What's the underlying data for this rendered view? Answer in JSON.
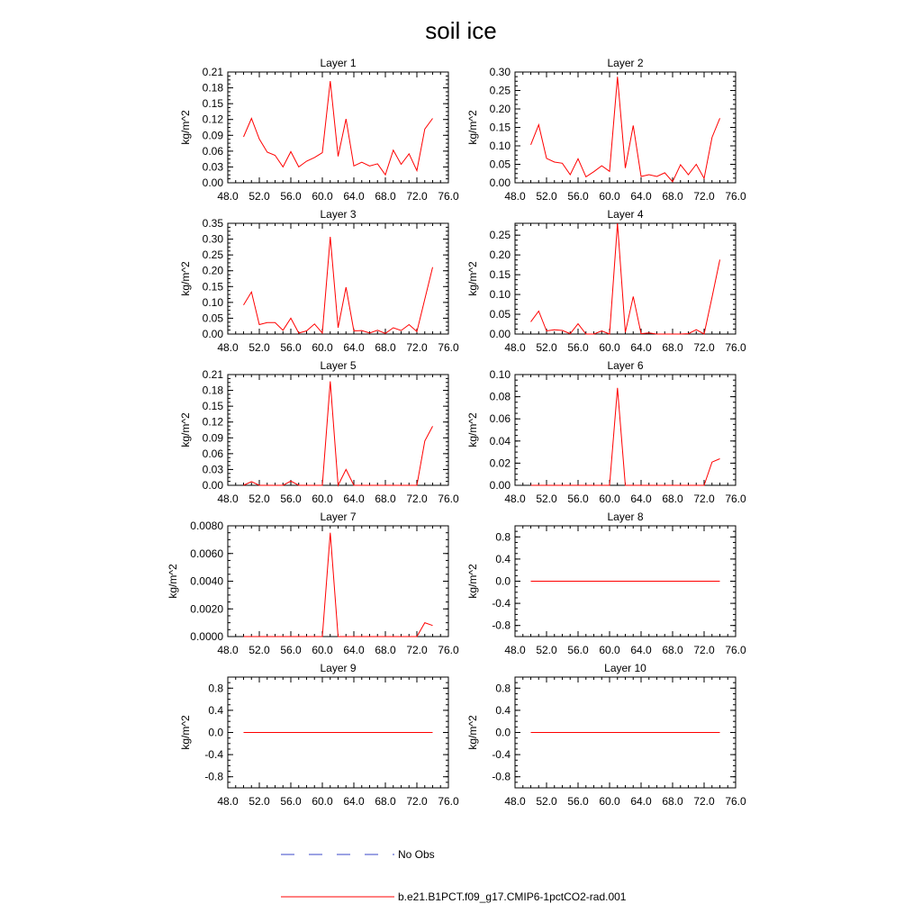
{
  "title": "soil ice",
  "colors": {
    "model_line": "#ff0000",
    "obs_line": "#3a46c8",
    "axis": "#000000",
    "background": "#ffffff"
  },
  "legend": {
    "position": "bottom-center",
    "items": [
      {
        "label": "No Obs",
        "style": "dashed",
        "color": "#3a46c8"
      },
      {
        "label": "b.e21.B1PCT.f09_g17.CMIP6-1pctCO2-rad.001",
        "style": "solid",
        "color": "#ff0000"
      }
    ]
  },
  "chart_data": [
    {
      "type": "line",
      "title": "Layer 1",
      "ylabel": "kg/m^2",
      "xlim": [
        48,
        76
      ],
      "xticks": [
        "48.0",
        "52.0",
        "56.0",
        "60.0",
        "64.0",
        "68.0",
        "72.0",
        "76.0"
      ],
      "ylim": [
        0,
        0.21
      ],
      "yticks": [
        "0.00",
        "0.03",
        "0.06",
        "0.09",
        "0.12",
        "0.15",
        "0.18",
        "0.21"
      ],
      "x": [
        50,
        51,
        52,
        53,
        54,
        55,
        56,
        57,
        58,
        59,
        60,
        61,
        62,
        63,
        64,
        65,
        66,
        67,
        68,
        69,
        70,
        71,
        72,
        73,
        74
      ],
      "series": [
        {
          "color": "#ff0000",
          "values": [
            0.087,
            0.122,
            0.083,
            0.058,
            0.052,
            0.03,
            0.059,
            0.03,
            0.041,
            0.048,
            0.057,
            0.193,
            0.05,
            0.121,
            0.032,
            0.039,
            0.032,
            0.036,
            0.015,
            0.062,
            0.035,
            0.055,
            0.023,
            0.102,
            0.122
          ]
        }
      ]
    },
    {
      "type": "line",
      "title": "Layer 2",
      "ylabel": "kg/m^2",
      "xlim": [
        48,
        76
      ],
      "xticks": [
        "48.0",
        "52.0",
        "56.0",
        "60.0",
        "64.0",
        "68.0",
        "72.0",
        "76.0"
      ],
      "ylim": [
        0,
        0.3
      ],
      "yticks": [
        "0.00",
        "0.05",
        "0.10",
        "0.15",
        "0.20",
        "0.25",
        "0.30"
      ],
      "x": [
        50,
        51,
        52,
        53,
        54,
        55,
        56,
        57,
        58,
        59,
        60,
        61,
        62,
        63,
        64,
        65,
        66,
        67,
        68,
        69,
        70,
        71,
        72,
        73,
        74
      ],
      "series": [
        {
          "color": "#ff0000",
          "values": [
            0.103,
            0.157,
            0.066,
            0.056,
            0.053,
            0.022,
            0.065,
            0.016,
            0.03,
            0.046,
            0.031,
            0.287,
            0.04,
            0.155,
            0.017,
            0.022,
            0.017,
            0.027,
            0.003,
            0.049,
            0.022,
            0.05,
            0.012,
            0.123,
            0.175
          ]
        }
      ]
    },
    {
      "type": "line",
      "title": "Layer 3",
      "ylabel": "kg/m^2",
      "xlim": [
        48,
        76
      ],
      "xticks": [
        "48.0",
        "52.0",
        "56.0",
        "60.0",
        "64.0",
        "68.0",
        "72.0",
        "76.0"
      ],
      "ylim": [
        0,
        0.35
      ],
      "yticks": [
        "0.00",
        "0.05",
        "0.10",
        "0.15",
        "0.20",
        "0.25",
        "0.30",
        "0.35"
      ],
      "x": [
        50,
        51,
        52,
        53,
        54,
        55,
        56,
        57,
        58,
        59,
        60,
        61,
        62,
        63,
        64,
        65,
        66,
        67,
        68,
        69,
        70,
        71,
        72,
        73,
        74
      ],
      "series": [
        {
          "color": "#ff0000",
          "values": [
            0.092,
            0.133,
            0.03,
            0.036,
            0.036,
            0.012,
            0.05,
            0.003,
            0.01,
            0.032,
            0.003,
            0.307,
            0.02,
            0.148,
            0.01,
            0.011,
            0.003,
            0.012,
            0.002,
            0.02,
            0.011,
            0.03,
            0.008,
            0.11,
            0.211
          ]
        }
      ]
    },
    {
      "type": "line",
      "title": "Layer 4",
      "ylabel": "kg/m^2",
      "xlim": [
        48,
        76
      ],
      "xticks": [
        "48.0",
        "52.0",
        "56.0",
        "60.0",
        "64.0",
        "68.0",
        "72.0",
        "76.0"
      ],
      "ylim": [
        0,
        0.28
      ],
      "yticks": [
        "0.00",
        "0.05",
        "0.10",
        "0.15",
        "0.20",
        "0.25"
      ],
      "x": [
        50,
        51,
        52,
        53,
        54,
        55,
        56,
        57,
        58,
        59,
        60,
        61,
        62,
        63,
        64,
        65,
        66,
        67,
        68,
        69,
        70,
        71,
        72,
        73,
        74
      ],
      "series": [
        {
          "color": "#ff0000",
          "values": [
            0.031,
            0.058,
            0.008,
            0.011,
            0.009,
            0.001,
            0.026,
            0.0,
            0.0,
            0.008,
            0.0,
            0.28,
            0.004,
            0.095,
            0.001,
            0.003,
            0.0,
            0.0,
            0.0,
            0.0,
            0.001,
            0.011,
            0.0,
            0.093,
            0.188
          ]
        }
      ]
    },
    {
      "type": "line",
      "title": "Layer 5",
      "ylabel": "kg/m^2",
      "xlim": [
        48,
        76
      ],
      "xticks": [
        "48.0",
        "52.0",
        "56.0",
        "60.0",
        "64.0",
        "68.0",
        "72.0",
        "76.0"
      ],
      "ylim": [
        0,
        0.21
      ],
      "yticks": [
        "0.00",
        "0.03",
        "0.06",
        "0.09",
        "0.12",
        "0.15",
        "0.18",
        "0.21"
      ],
      "x": [
        50,
        51,
        52,
        53,
        54,
        55,
        56,
        57,
        58,
        59,
        60,
        61,
        62,
        63,
        64,
        65,
        66,
        67,
        68,
        69,
        70,
        71,
        72,
        73,
        74
      ],
      "series": [
        {
          "color": "#ff0000",
          "values": [
            0.0,
            0.007,
            0.0,
            0.0,
            0.0,
            0.0,
            0.008,
            0.0,
            0.0,
            0.0,
            0.0,
            0.197,
            0.0,
            0.03,
            0.0,
            0.0,
            0.0,
            0.0,
            0.0,
            0.0,
            0.0,
            0.0,
            0.0,
            0.084,
            0.112
          ]
        }
      ]
    },
    {
      "type": "line",
      "title": "Layer 6",
      "ylabel": "kg/m^2",
      "xlim": [
        48,
        76
      ],
      "xticks": [
        "48.0",
        "52.0",
        "56.0",
        "60.0",
        "64.0",
        "68.0",
        "72.0",
        "76.0"
      ],
      "ylim": [
        0,
        0.1
      ],
      "yticks": [
        "0.00",
        "0.02",
        "0.04",
        "0.06",
        "0.08",
        "0.10"
      ],
      "x": [
        50,
        51,
        52,
        53,
        54,
        55,
        56,
        57,
        58,
        59,
        60,
        61,
        62,
        63,
        64,
        65,
        66,
        67,
        68,
        69,
        70,
        71,
        72,
        73,
        74
      ],
      "series": [
        {
          "color": "#ff0000",
          "values": [
            0.0,
            0.0,
            0.0,
            0.0,
            0.0,
            0.0,
            0.0,
            0.0,
            0.0,
            0.0,
            0.0,
            0.088,
            0.0,
            0.0,
            0.0,
            0.0,
            0.0,
            0.0,
            0.0,
            0.0,
            0.0,
            0.0,
            0.0,
            0.021,
            0.024
          ]
        }
      ]
    },
    {
      "type": "line",
      "title": "Layer 7",
      "ylabel": "kg/m^2",
      "xlim": [
        48,
        76
      ],
      "xticks": [
        "48.0",
        "52.0",
        "56.0",
        "60.0",
        "64.0",
        "68.0",
        "72.0",
        "76.0"
      ],
      "ylim": [
        0,
        0.008
      ],
      "yticks": [
        "0.0000",
        "0.0020",
        "0.0040",
        "0.0060",
        "0.0080"
      ],
      "x": [
        50,
        51,
        52,
        53,
        54,
        55,
        56,
        57,
        58,
        59,
        60,
        61,
        62,
        63,
        64,
        65,
        66,
        67,
        68,
        69,
        70,
        71,
        72,
        73,
        74
      ],
      "series": [
        {
          "color": "#ff0000",
          "values": [
            0,
            0,
            0,
            0,
            0,
            0,
            0,
            0,
            0,
            0,
            0,
            0.0075,
            0,
            0,
            0,
            0,
            0,
            0,
            0,
            0,
            0,
            0,
            0,
            0.001,
            0.0008
          ]
        }
      ]
    },
    {
      "type": "line",
      "title": "Layer 8",
      "ylabel": "kg/m^2",
      "xlim": [
        48,
        76
      ],
      "xticks": [
        "48.0",
        "52.0",
        "56.0",
        "60.0",
        "64.0",
        "68.0",
        "72.0",
        "76.0"
      ],
      "ylim": [
        -1,
        1
      ],
      "yticks": [
        "-0.8",
        "-0.4",
        "0.0",
        "0.4",
        "0.8"
      ],
      "x": [
        50,
        74
      ],
      "series": [
        {
          "color": "#ff0000",
          "values": [
            0,
            0
          ]
        }
      ]
    },
    {
      "type": "line",
      "title": "Layer 9",
      "ylabel": "kg/m^2",
      "xlim": [
        48,
        76
      ],
      "xticks": [
        "48.0",
        "52.0",
        "56.0",
        "60.0",
        "64.0",
        "68.0",
        "72.0",
        "76.0"
      ],
      "ylim": [
        -1,
        1
      ],
      "yticks": [
        "-0.8",
        "-0.4",
        "0.0",
        "0.4",
        "0.8"
      ],
      "x": [
        50,
        74
      ],
      "series": [
        {
          "color": "#ff0000",
          "values": [
            0,
            0
          ]
        }
      ]
    },
    {
      "type": "line",
      "title": "Layer 10",
      "ylabel": "kg/m^2",
      "xlim": [
        48,
        76
      ],
      "xticks": [
        "48.0",
        "52.0",
        "56.0",
        "60.0",
        "64.0",
        "68.0",
        "72.0",
        "76.0"
      ],
      "ylim": [
        -1,
        1
      ],
      "yticks": [
        "-0.8",
        "-0.4",
        "0.0",
        "0.4",
        "0.8"
      ],
      "x": [
        50,
        74
      ],
      "series": [
        {
          "color": "#ff0000",
          "values": [
            0,
            0
          ]
        }
      ]
    }
  ]
}
